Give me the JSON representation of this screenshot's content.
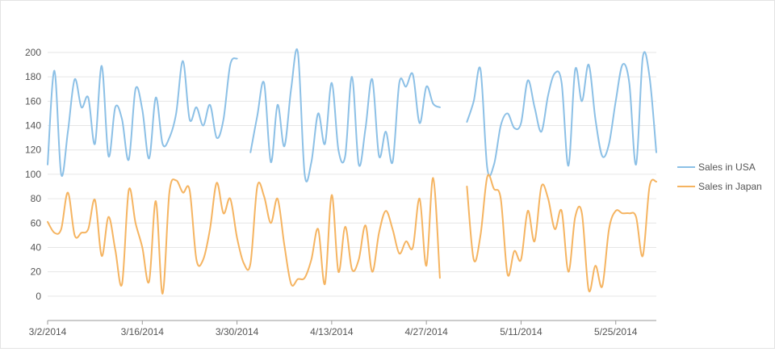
{
  "chart_data": {
    "type": "line",
    "title": "",
    "xlabel": "",
    "ylabel": "",
    "ylim": [
      -20,
      200
    ],
    "yticks": [
      0,
      20,
      40,
      60,
      80,
      100,
      120,
      140,
      160,
      180,
      200
    ],
    "x_tick_labels": [
      "3/2/2014",
      "3/16/2014",
      "3/30/2014",
      "4/13/2014",
      "4/27/2014",
      "5/11/2014",
      "5/25/2014"
    ],
    "x_start_date": "2014-03-02",
    "x_end_date": "2014-05-31",
    "grid": "horizontal",
    "legend_position": "right",
    "series": [
      {
        "name": "Sales in USA",
        "color": "#8cc0e6",
        "points": [
          [
            "2014-03-02",
            108
          ],
          [
            "2014-03-03",
            185
          ],
          [
            "2014-03-04",
            100
          ],
          [
            "2014-03-05",
            135
          ],
          [
            "2014-03-06",
            178
          ],
          [
            "2014-03-07",
            155
          ],
          [
            "2014-03-08",
            163
          ],
          [
            "2014-03-09",
            125
          ],
          [
            "2014-03-10",
            189
          ],
          [
            "2014-03-11",
            115
          ],
          [
            "2014-03-12",
            155
          ],
          [
            "2014-03-13",
            145
          ],
          [
            "2014-03-14",
            112
          ],
          [
            "2014-03-15",
            170
          ],
          [
            "2014-03-16",
            153
          ],
          [
            "2014-03-17",
            113
          ],
          [
            "2014-03-18",
            163
          ],
          [
            "2014-03-19",
            125
          ],
          [
            "2014-03-20",
            130
          ],
          [
            "2014-03-21",
            150
          ],
          [
            "2014-03-22",
            193
          ],
          [
            "2014-03-23",
            145
          ],
          [
            "2014-03-24",
            155
          ],
          [
            "2014-03-25",
            140
          ],
          [
            "2014-03-26",
            157
          ],
          [
            "2014-03-27",
            130
          ],
          [
            "2014-03-28",
            145
          ],
          [
            "2014-03-29",
            190
          ],
          [
            "2014-03-30",
            195
          ],
          [
            "2014-04-01",
            118
          ],
          [
            "2014-04-02",
            148
          ],
          [
            "2014-04-03",
            175
          ],
          [
            "2014-04-04",
            110
          ],
          [
            "2014-04-05",
            157
          ],
          [
            "2014-04-06",
            123
          ],
          [
            "2014-04-07",
            170
          ],
          [
            "2014-04-08",
            200
          ],
          [
            "2014-04-09",
            100
          ],
          [
            "2014-04-10",
            110
          ],
          [
            "2014-04-11",
            150
          ],
          [
            "2014-04-12",
            125
          ],
          [
            "2014-04-13",
            175
          ],
          [
            "2014-04-14",
            120
          ],
          [
            "2014-04-15",
            115
          ],
          [
            "2014-04-16",
            180
          ],
          [
            "2014-04-17",
            108
          ],
          [
            "2014-04-18",
            138
          ],
          [
            "2014-04-19",
            178
          ],
          [
            "2014-04-20",
            115
          ],
          [
            "2014-04-21",
            135
          ],
          [
            "2014-04-22",
            110
          ],
          [
            "2014-04-23",
            175
          ],
          [
            "2014-04-24",
            172
          ],
          [
            "2014-04-25",
            182
          ],
          [
            "2014-04-26",
            142
          ],
          [
            "2014-04-27",
            172
          ],
          [
            "2014-04-28",
            158
          ],
          [
            "2014-04-29",
            155
          ],
          [
            "2014-05-03",
            143
          ],
          [
            "2014-05-04",
            160
          ],
          [
            "2014-05-05",
            186
          ],
          [
            "2014-05-06",
            105
          ],
          [
            "2014-05-07",
            108
          ],
          [
            "2014-05-08",
            140
          ],
          [
            "2014-05-09",
            150
          ],
          [
            "2014-05-10",
            138
          ],
          [
            "2014-05-11",
            142
          ],
          [
            "2014-05-12",
            177
          ],
          [
            "2014-05-13",
            155
          ],
          [
            "2014-05-14",
            135
          ],
          [
            "2014-05-15",
            165
          ],
          [
            "2014-05-16",
            183
          ],
          [
            "2014-05-17",
            175
          ],
          [
            "2014-05-18",
            107
          ],
          [
            "2014-05-19",
            186
          ],
          [
            "2014-05-20",
            160
          ],
          [
            "2014-05-21",
            190
          ],
          [
            "2014-05-22",
            145
          ],
          [
            "2014-05-23",
            115
          ],
          [
            "2014-05-24",
            125
          ],
          [
            "2014-05-25",
            160
          ],
          [
            "2014-05-26",
            190
          ],
          [
            "2014-05-27",
            175
          ],
          [
            "2014-05-28",
            108
          ],
          [
            "2014-05-29",
            196
          ],
          [
            "2014-05-30",
            180
          ],
          [
            "2014-05-31",
            118
          ]
        ]
      },
      {
        "name": "Sales in Japan",
        "color": "#f5b461",
        "points": [
          [
            "2014-03-02",
            61
          ],
          [
            "2014-03-03",
            52
          ],
          [
            "2014-03-04",
            55
          ],
          [
            "2014-03-05",
            85
          ],
          [
            "2014-03-06",
            50
          ],
          [
            "2014-03-07",
            52
          ],
          [
            "2014-03-08",
            55
          ],
          [
            "2014-03-09",
            79
          ],
          [
            "2014-03-10",
            33
          ],
          [
            "2014-03-11",
            65
          ],
          [
            "2014-03-12",
            38
          ],
          [
            "2014-03-13",
            10
          ],
          [
            "2014-03-14",
            87
          ],
          [
            "2014-03-15",
            60
          ],
          [
            "2014-03-16",
            40
          ],
          [
            "2014-03-17",
            12
          ],
          [
            "2014-03-18",
            78
          ],
          [
            "2014-03-19",
            2
          ],
          [
            "2014-03-20",
            85
          ],
          [
            "2014-03-21",
            95
          ],
          [
            "2014-03-22",
            85
          ],
          [
            "2014-03-23",
            87
          ],
          [
            "2014-03-24",
            30
          ],
          [
            "2014-03-25",
            30
          ],
          [
            "2014-03-26",
            55
          ],
          [
            "2014-03-27",
            93
          ],
          [
            "2014-03-28",
            68
          ],
          [
            "2014-03-29",
            80
          ],
          [
            "2014-03-30",
            48
          ],
          [
            "2014-03-31",
            27
          ],
          [
            "2014-04-01",
            27
          ],
          [
            "2014-04-02",
            90
          ],
          [
            "2014-04-03",
            82
          ],
          [
            "2014-04-04",
            60
          ],
          [
            "2014-04-05",
            80
          ],
          [
            "2014-04-06",
            42
          ],
          [
            "2014-04-07",
            10
          ],
          [
            "2014-04-08",
            14
          ],
          [
            "2014-04-09",
            15
          ],
          [
            "2014-04-10",
            30
          ],
          [
            "2014-04-11",
            55
          ],
          [
            "2014-04-12",
            10
          ],
          [
            "2014-04-13",
            83
          ],
          [
            "2014-04-14",
            20
          ],
          [
            "2014-04-15",
            57
          ],
          [
            "2014-04-16",
            22
          ],
          [
            "2014-04-17",
            30
          ],
          [
            "2014-04-18",
            58
          ],
          [
            "2014-04-19",
            20
          ],
          [
            "2014-04-20",
            52
          ],
          [
            "2014-04-21",
            70
          ],
          [
            "2014-04-22",
            55
          ],
          [
            "2014-04-23",
            35
          ],
          [
            "2014-04-24",
            45
          ],
          [
            "2014-04-25",
            40
          ],
          [
            "2014-04-26",
            80
          ],
          [
            "2014-04-27",
            25
          ],
          [
            "2014-04-28",
            97
          ],
          [
            "2014-04-29",
            15
          ],
          [
            "2014-05-03",
            90
          ],
          [
            "2014-05-04",
            30
          ],
          [
            "2014-05-05",
            50
          ],
          [
            "2014-05-06",
            98
          ],
          [
            "2014-05-07",
            88
          ],
          [
            "2014-05-08",
            80
          ],
          [
            "2014-05-09",
            18
          ],
          [
            "2014-05-10",
            37
          ],
          [
            "2014-05-11",
            30
          ],
          [
            "2014-05-12",
            70
          ],
          [
            "2014-05-13",
            45
          ],
          [
            "2014-05-14",
            90
          ],
          [
            "2014-05-15",
            80
          ],
          [
            "2014-05-16",
            55
          ],
          [
            "2014-05-17",
            70
          ],
          [
            "2014-05-18",
            20
          ],
          [
            "2014-05-19",
            65
          ],
          [
            "2014-05-20",
            68
          ],
          [
            "2014-05-21",
            5
          ],
          [
            "2014-05-22",
            25
          ],
          [
            "2014-05-23",
            8
          ],
          [
            "2014-05-24",
            55
          ],
          [
            "2014-05-25",
            70
          ],
          [
            "2014-05-26",
            68
          ],
          [
            "2014-05-27",
            68
          ],
          [
            "2014-05-28",
            65
          ],
          [
            "2014-05-29",
            33
          ],
          [
            "2014-05-30",
            90
          ],
          [
            "2014-05-31",
            94
          ]
        ]
      }
    ]
  }
}
